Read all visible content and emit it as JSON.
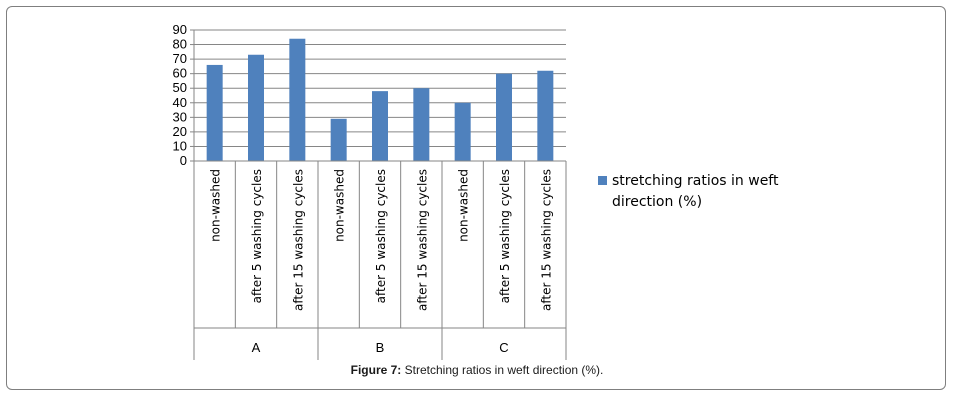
{
  "caption": {
    "label": "Figure 7:",
    "text": " Stretching ratios in weft direction (%)."
  },
  "chart_data": {
    "type": "bar",
    "groups": [
      {
        "name": "A",
        "categories": [
          "non-washed",
          "after 5 washing cycles",
          "after 15 washing cycles"
        ],
        "values": [
          66,
          73,
          84
        ]
      },
      {
        "name": "B",
        "categories": [
          "non-washed",
          "after 5 washing cycles",
          "after 15 washing cycles"
        ],
        "values": [
          29,
          48,
          50
        ]
      },
      {
        "name": "C",
        "categories": [
          "non-washed",
          "after 5 washing cycles",
          "after 15 washing cycles"
        ],
        "values": [
          40,
          60,
          62
        ]
      }
    ],
    "series": [
      {
        "name": "stretching ratios in weft direction (%)",
        "color": "#4f81bd"
      }
    ],
    "legend_lines": [
      "stretching ratios in weft",
      "direction (%)"
    ],
    "ylim": [
      0,
      90
    ],
    "yticks": [
      0,
      10,
      20,
      30,
      40,
      50,
      60,
      70,
      80,
      90
    ],
    "grid": true,
    "legend_position": "right",
    "title": "",
    "xlabel": "",
    "ylabel": ""
  }
}
